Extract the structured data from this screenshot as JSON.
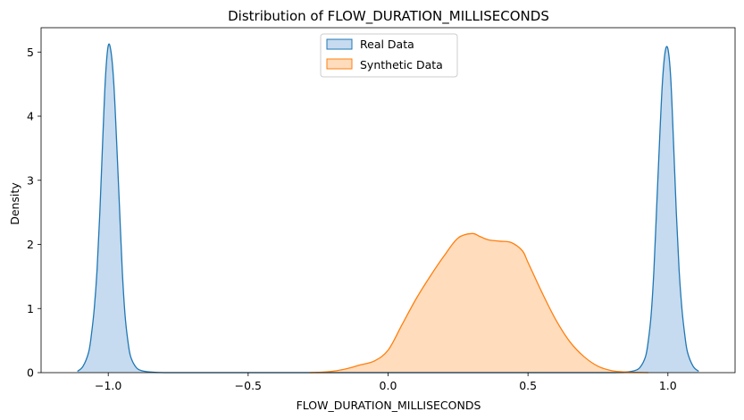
{
  "chart_data": {
    "type": "area",
    "title": "Distribution of FLOW_DURATION_MILLISECONDS",
    "xlabel": "FLOW_DURATION_MILLISECONDS",
    "ylabel": "Density",
    "xlim": [
      -1.24,
      1.24
    ],
    "ylim": [
      0,
      5.38
    ],
    "xticks": [
      {
        "value": -1.0,
        "label": "−1.0"
      },
      {
        "value": -0.5,
        "label": "−0.5"
      },
      {
        "value": 0.0,
        "label": "0.0"
      },
      {
        "value": 0.5,
        "label": "0.5"
      },
      {
        "value": 1.0,
        "label": "1.0"
      }
    ],
    "yticks": [
      {
        "value": 0,
        "label": "0"
      },
      {
        "value": 1,
        "label": "1"
      },
      {
        "value": 2,
        "label": "2"
      },
      {
        "value": 3,
        "label": "3"
      },
      {
        "value": 4,
        "label": "4"
      },
      {
        "value": 5,
        "label": "5"
      }
    ],
    "grid": false,
    "legend": {
      "position": "top-center"
    },
    "series": [
      {
        "name": "Real Data",
        "line_color": "#1f77b4",
        "fill_color": "#c6dbef",
        "x": [
          -1.11,
          -1.09,
          -1.07,
          -1.06,
          -1.05,
          -1.04,
          -1.03,
          -1.02,
          -1.01,
          -1.0,
          -0.99,
          -0.98,
          -0.97,
          -0.96,
          -0.95,
          -0.94,
          -0.93,
          -0.92,
          -0.9,
          -0.88,
          -0.85,
          -0.8,
          -0.7,
          -0.5,
          0.0,
          0.5,
          0.8,
          0.85,
          0.88,
          0.9,
          0.92,
          0.93,
          0.94,
          0.95,
          0.96,
          0.97,
          0.98,
          0.99,
          1.0,
          1.01,
          1.02,
          1.03,
          1.04,
          1.05,
          1.06,
          1.07,
          1.09,
          1.11
        ],
        "y": [
          0.02,
          0.1,
          0.32,
          0.6,
          1.0,
          1.6,
          2.5,
          3.6,
          4.6,
          5.1,
          5.0,
          4.5,
          3.6,
          2.6,
          1.6,
          0.9,
          0.5,
          0.25,
          0.08,
          0.03,
          0.01,
          0.0,
          0.0,
          0.0,
          0.0,
          0.0,
          0.0,
          0.01,
          0.03,
          0.08,
          0.25,
          0.5,
          0.9,
          1.6,
          2.6,
          3.6,
          4.5,
          5.0,
          5.05,
          4.6,
          3.6,
          2.5,
          1.6,
          1.0,
          0.6,
          0.32,
          0.1,
          0.02
        ]
      },
      {
        "name": "Synthetic Data",
        "line_color": "#ff7f0e",
        "fill_color": "#ffdcbc",
        "x": [
          -0.28,
          -0.25,
          -0.2,
          -0.15,
          -0.1,
          -0.05,
          0.0,
          0.05,
          0.1,
          0.15,
          0.2,
          0.25,
          0.3,
          0.33,
          0.36,
          0.4,
          0.44,
          0.48,
          0.5,
          0.55,
          0.6,
          0.65,
          0.7,
          0.75,
          0.8,
          0.85,
          0.9,
          0.93
        ],
        "y": [
          0.0,
          0.005,
          0.02,
          0.06,
          0.12,
          0.18,
          0.35,
          0.75,
          1.15,
          1.5,
          1.82,
          2.1,
          2.17,
          2.12,
          2.07,
          2.05,
          2.03,
          1.9,
          1.72,
          1.25,
          0.82,
          0.48,
          0.25,
          0.1,
          0.03,
          0.01,
          0.003,
          0.0
        ]
      }
    ]
  }
}
